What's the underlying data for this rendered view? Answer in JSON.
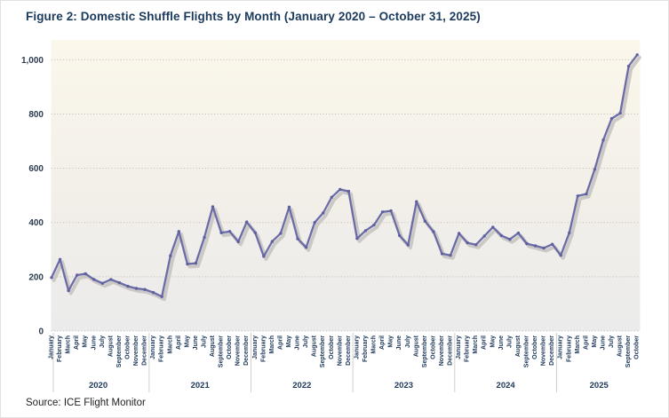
{
  "title": "Figure 2: Domestic Shuffle Flights by Month (January 2020 – October 31, 2025)",
  "source_note": "Source: ICE Flight Monitor",
  "colors": {
    "title_text": "#1b3a5c",
    "axis_text": "#2c3a4e",
    "month_text": "#203a5c",
    "line": "#6b6ca6",
    "marker": "#5f60a0",
    "line_shadow": "#c6c4c2",
    "gridline": "#bdbab5",
    "year_separator": "#d2d0cc",
    "plot_bg_top": "#fbf7eb",
    "plot_bg_bottom": "#ebebeb"
  },
  "chart_data": {
    "type": "line",
    "title": "Figure 2: Domestic Shuffle Flights by Month (January 2020 – October 31, 2025)",
    "xlabel": "",
    "ylabel": "",
    "ylim": [
      0,
      1100
    ],
    "yticks": [
      0,
      200,
      400,
      600,
      800,
      1000
    ],
    "ytick_labels": [
      "0",
      "200",
      "400",
      "600",
      "800",
      "1,000"
    ],
    "grid": "horizontal dotted",
    "legend": "none",
    "month_labels": [
      "January",
      "February",
      "March",
      "April",
      "May",
      "June",
      "July",
      "August",
      "September",
      "October",
      "November",
      "December"
    ],
    "series_name": "Domestic Shuffle Flights",
    "data_by_year": [
      {
        "year": "2020",
        "values": [
          197,
          264,
          149,
          206,
          211,
          190,
          176,
          190,
          178,
          165,
          157,
          153
        ]
      },
      {
        "year": "2021",
        "values": [
          142,
          127,
          277,
          367,
          247,
          250,
          345,
          458,
          362,
          367,
          329,
          402
        ]
      },
      {
        "year": "2022",
        "values": [
          362,
          275,
          330,
          360,
          457,
          340,
          308,
          400,
          435,
          493,
          522,
          515
        ]
      },
      {
        "year": "2023",
        "values": [
          341,
          370,
          391,
          439,
          443,
          352,
          317,
          477,
          405,
          366,
          285,
          279
        ]
      },
      {
        "year": "2024",
        "values": [
          360,
          325,
          318,
          350,
          383,
          352,
          338,
          361,
          322,
          314,
          306,
          320
        ]
      },
      {
        "year": "2025",
        "values": [
          279,
          362,
          498,
          505,
          596,
          704,
          783,
          803,
          976,
          1018
        ]
      }
    ]
  }
}
